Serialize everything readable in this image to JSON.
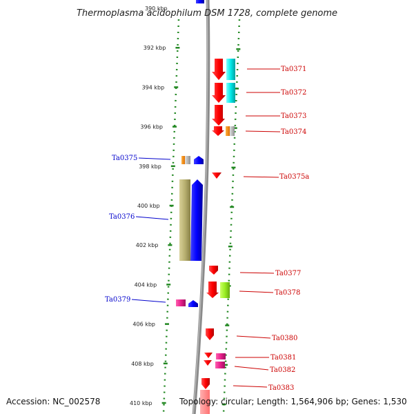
{
  "header": {
    "title": "Thermoplasma acidophilum DSM 1728, complete genome"
  },
  "footer": {
    "accession": "Accession: NC_002578",
    "topology": "Topology: circular; Length: 1,564,906 bp; Genes: 1,530"
  },
  "axis": {
    "ticks": [
      {
        "label": "390 kbp",
        "faded": true
      },
      {
        "label": "392 kbp"
      },
      {
        "label": "394 kbp"
      },
      {
        "label": "396 kbp"
      },
      {
        "label": "398 kbp"
      },
      {
        "label": "400 kbp"
      },
      {
        "label": "402 kbp"
      },
      {
        "label": "404 kbp"
      },
      {
        "label": "406 kbp"
      },
      {
        "label": "408 kbp"
      },
      {
        "label": "410 kbp"
      }
    ]
  },
  "genes": [
    {
      "label": "Ta0371",
      "strand": "plus",
      "color": "#cc0000"
    },
    {
      "label": "Ta0372",
      "strand": "plus",
      "color": "#cc0000"
    },
    {
      "label": "Ta0373",
      "strand": "plus",
      "color": "#cc0000"
    },
    {
      "label": "Ta0374",
      "strand": "plus",
      "color": "#cc0000"
    },
    {
      "label": "Ta0375",
      "strand": "minus",
      "color": "#0000cc"
    },
    {
      "label": "Ta0375a",
      "strand": "plus",
      "color": "#cc0000"
    },
    {
      "label": "Ta0376",
      "strand": "minus",
      "color": "#0000cc"
    },
    {
      "label": "Ta0377",
      "strand": "plus",
      "color": "#cc0000"
    },
    {
      "label": "Ta0378",
      "strand": "plus",
      "color": "#cc0000"
    },
    {
      "label": "Ta0379",
      "strand": "minus",
      "color": "#0000cc"
    },
    {
      "label": "Ta0380",
      "strand": "plus",
      "color": "#cc0000"
    },
    {
      "label": "Ta0381",
      "strand": "plus",
      "color": "#cc0000"
    },
    {
      "label": "Ta0382",
      "strand": "plus",
      "color": "#cc0000"
    },
    {
      "label": "Ta0383",
      "strand": "plus",
      "color": "#cc0000"
    }
  ],
  "colors": {
    "cds_plus": "#ff0000",
    "cds_minus": "#0000ff",
    "trna": "#00e0e0",
    "olive": "#b0a860",
    "magenta": "#e0208a",
    "lime": "#99ee22",
    "orange": "#ff8800",
    "grey": "#b8b8b8",
    "ruler_dots": "#228822",
    "backbone": "#888888"
  }
}
